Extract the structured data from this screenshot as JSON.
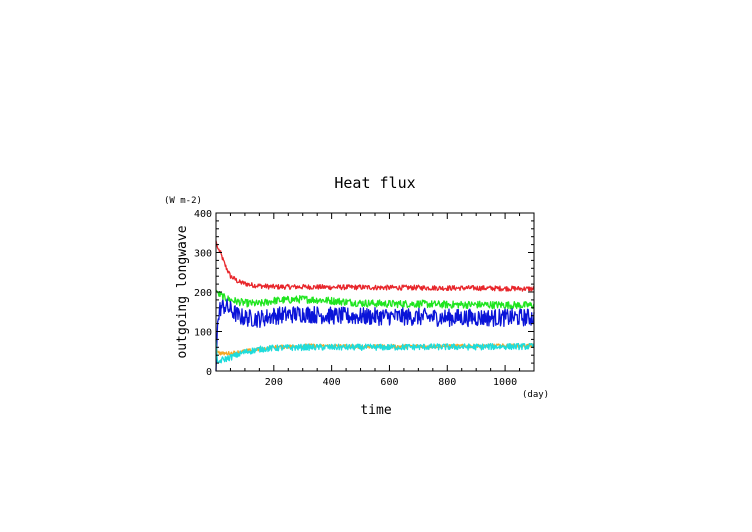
{
  "chart_data": {
    "type": "line",
    "title": "Heat flux",
    "xlabel": "time",
    "ylabel": "outgoing longwave",
    "x_unit": "(day)",
    "y_unit": "(W m-2)",
    "xlim": [
      0,
      1100
    ],
    "ylim": [
      0,
      400
    ],
    "x_ticks": [
      "200",
      "400",
      "600",
      "800",
      "1000"
    ],
    "y_ticks": [
      "0",
      "100",
      "200",
      "300",
      "400"
    ],
    "grid": false,
    "legend": "none",
    "series": [
      {
        "color": "#e8262b",
        "noise": 4,
        "x": [
          0,
          5,
          15,
          30,
          50,
          80,
          120,
          160,
          200,
          300,
          400,
          500,
          600,
          700,
          800,
          900,
          1000,
          1100
        ],
        "values": [
          330,
          312,
          300,
          270,
          240,
          225,
          218,
          215,
          213,
          213,
          212,
          212,
          211,
          211,
          210,
          210,
          209,
          208
        ]
      },
      {
        "color": "#1fe51f",
        "noise": 6,
        "x": [
          0,
          10,
          30,
          60,
          100,
          150,
          200,
          300,
          400,
          500,
          600,
          700,
          800,
          900,
          1000,
          1100
        ],
        "values": [
          205,
          195,
          185,
          178,
          172,
          170,
          178,
          182,
          178,
          172,
          170,
          170,
          168,
          168,
          167,
          166
        ]
      },
      {
        "color": "#0a14d8",
        "noise": 14,
        "x": [
          0,
          5,
          15,
          30,
          50,
          80,
          100,
          150,
          200,
          300,
          400,
          500,
          600,
          700,
          800,
          900,
          1000,
          1100
        ],
        "values": [
          0,
          120,
          160,
          165,
          155,
          138,
          135,
          132,
          140,
          145,
          140,
          138,
          138,
          137,
          135,
          135,
          135,
          136
        ]
      },
      {
        "color": "#f5a623",
        "noise": 3,
        "x": [
          0,
          5,
          20,
          50,
          100,
          150,
          200,
          300,
          400,
          500,
          600,
          700,
          800,
          900,
          1000,
          1100
        ],
        "values": [
          60,
          48,
          44,
          45,
          50,
          55,
          60,
          64,
          63,
          62,
          62,
          63,
          63,
          63,
          64,
          64
        ]
      },
      {
        "color": "#1edcdc",
        "noise": 5,
        "x": [
          0,
          5,
          20,
          40,
          70,
          100,
          150,
          200,
          300,
          400,
          500,
          600,
          700,
          800,
          900,
          1000,
          1100
        ],
        "values": [
          80,
          20,
          28,
          32,
          40,
          48,
          55,
          58,
          60,
          60,
          60,
          60,
          61,
          61,
          61,
          62,
          62
        ]
      }
    ]
  }
}
